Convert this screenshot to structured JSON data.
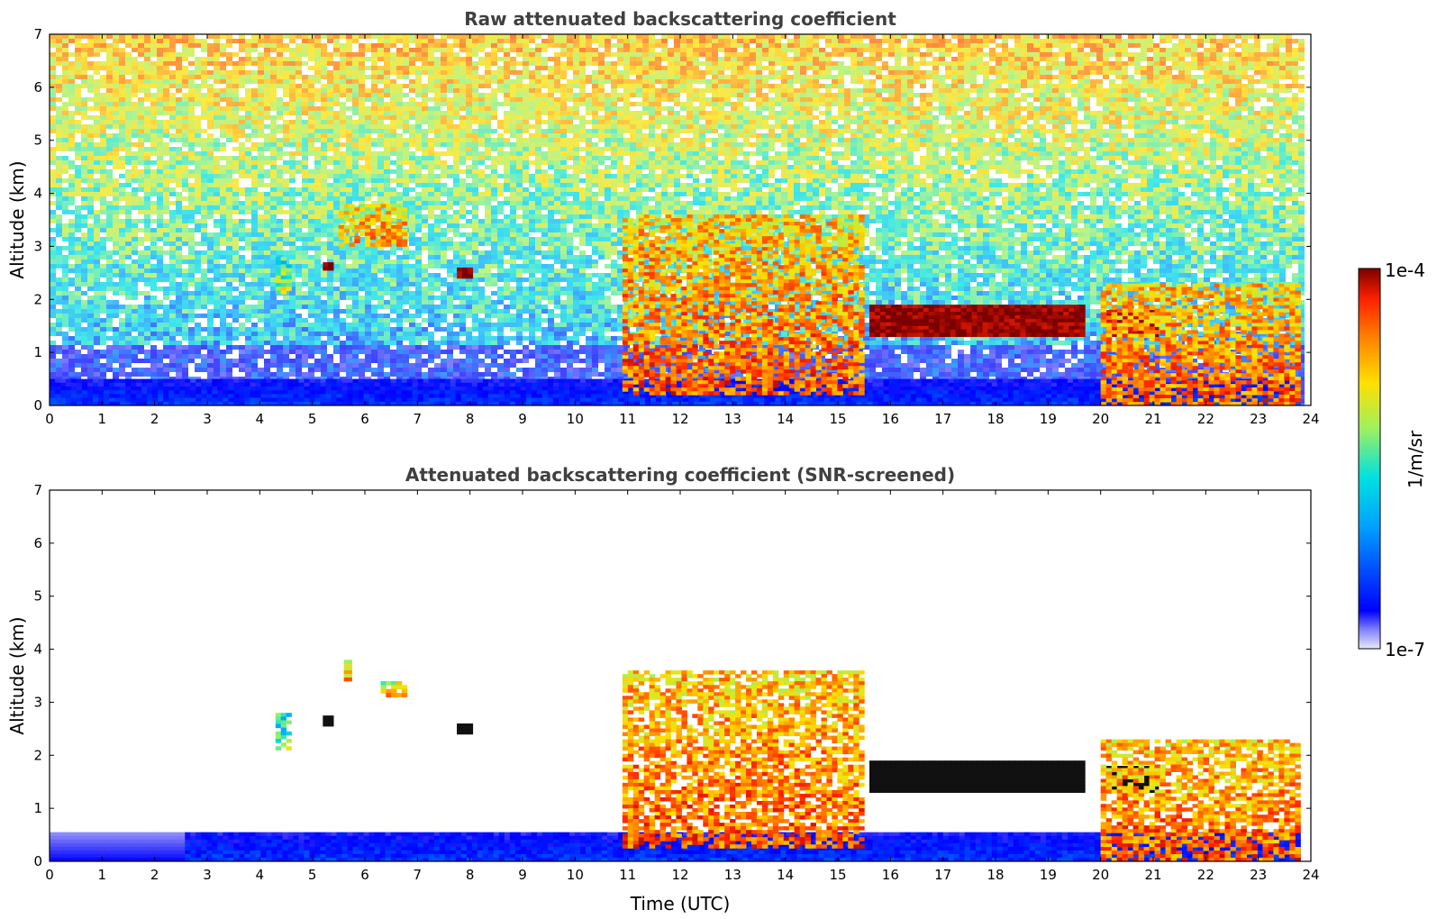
{
  "chart_data": [
    {
      "type": "heatmap",
      "title": "Raw attenuated backscattering coefficient",
      "xlabel": "",
      "ylabel": "Altitude (km)",
      "xlim": [
        0,
        24
      ],
      "ylim": [
        0,
        7
      ],
      "x_ticks": [
        "0",
        "1",
        "2",
        "3",
        "4",
        "5",
        "6",
        "7",
        "8",
        "9",
        "10",
        "11",
        "12",
        "13",
        "14",
        "15",
        "16",
        "17",
        "18",
        "19",
        "20",
        "21",
        "22",
        "23",
        "24"
      ],
      "y_ticks": [
        "0",
        "1",
        "2",
        "3",
        "4",
        "5",
        "6",
        "7"
      ],
      "grid": false,
      "features": [
        {
          "kind": "surface_layer",
          "t": [
            0,
            23.8
          ],
          "alt": [
            0,
            0.5
          ],
          "level": 0.12
        },
        {
          "kind": "cloud",
          "t": [
            5.2,
            5.4
          ],
          "alt": [
            2.55,
            2.7
          ],
          "level": 0.98
        },
        {
          "kind": "cloud",
          "t": [
            7.75,
            8.05
          ],
          "alt": [
            2.4,
            2.6
          ],
          "level": 0.98
        },
        {
          "kind": "aerosol",
          "t": [
            4.3,
            4.6
          ],
          "alt": [
            2.1,
            2.8
          ],
          "level": 0.5
        },
        {
          "kind": "aerosol",
          "t": [
            5.5,
            6.8
          ],
          "alt": [
            3.0,
            3.8
          ],
          "level": 0.7
        },
        {
          "kind": "aerosol",
          "t": [
            10.9,
            15.5
          ],
          "alt": [
            0.2,
            3.6
          ],
          "level": 0.75
        },
        {
          "kind": "cloud",
          "t": [
            15.6,
            19.7
          ],
          "alt": [
            1.3,
            1.9
          ],
          "level": 0.98
        },
        {
          "kind": "cloud",
          "t": [
            20.1,
            21.1
          ],
          "alt": [
            1.3,
            1.8
          ],
          "level": 0.95
        },
        {
          "kind": "boundary_layer",
          "t": [
            20.0,
            23.8
          ],
          "alt": [
            0,
            2.3
          ],
          "level": 0.75
        }
      ]
    },
    {
      "type": "heatmap",
      "title": "Attenuated backscattering coefficient (SNR-screened)",
      "xlabel": "Time (UTC)",
      "ylabel": "Altitude (km)",
      "xlim": [
        0,
        24
      ],
      "ylim": [
        0,
        7
      ],
      "x_ticks": [
        "0",
        "1",
        "2",
        "3",
        "4",
        "5",
        "6",
        "7",
        "8",
        "9",
        "10",
        "11",
        "12",
        "13",
        "14",
        "15",
        "16",
        "17",
        "18",
        "19",
        "20",
        "21",
        "22",
        "23",
        "24"
      ],
      "y_ticks": [
        "0",
        "1",
        "2",
        "3",
        "4",
        "5",
        "6",
        "7"
      ],
      "grid": false,
      "features": [
        {
          "kind": "surface_layer",
          "t": [
            0,
            23.8
          ],
          "alt": [
            0,
            0.55
          ],
          "level": 0.12
        },
        {
          "kind": "cloud",
          "t": [
            5.2,
            5.4
          ],
          "alt": [
            2.55,
            2.75
          ],
          "level": 1.0
        },
        {
          "kind": "cloud",
          "t": [
            7.75,
            8.05
          ],
          "alt": [
            2.4,
            2.6
          ],
          "level": 1.0
        },
        {
          "kind": "aerosol",
          "t": [
            4.3,
            4.6
          ],
          "alt": [
            2.1,
            2.8
          ],
          "level": 0.45
        },
        {
          "kind": "aerosol",
          "t": [
            5.6,
            5.75
          ],
          "alt": [
            3.4,
            3.8
          ],
          "level": 0.7
        },
        {
          "kind": "aerosol",
          "t": [
            6.3,
            6.8
          ],
          "alt": [
            3.1,
            3.4
          ],
          "level": 0.65
        },
        {
          "kind": "aerosol",
          "t": [
            10.9,
            15.5
          ],
          "alt": [
            0.25,
            3.6
          ],
          "level": 0.75
        },
        {
          "kind": "cloud",
          "t": [
            15.6,
            19.7
          ],
          "alt": [
            1.3,
            1.9
          ],
          "level": 1.0
        },
        {
          "kind": "cloud",
          "t": [
            20.1,
            21.1
          ],
          "alt": [
            1.3,
            1.8
          ],
          "level": 1.0
        },
        {
          "kind": "boundary_layer",
          "t": [
            20.0,
            23.8
          ],
          "alt": [
            0,
            2.3
          ],
          "level": 0.75
        }
      ]
    }
  ],
  "colorbar": {
    "label": "1/m/sr",
    "max_label": "1e-4",
    "min_label": "1e-7",
    "scale": "log",
    "range": [
      1e-07,
      0.0001
    ],
    "colormap": [
      "#e8e8f8",
      "#0000ff",
      "#00a0ff",
      "#00e0e0",
      "#a0f060",
      "#ffe000",
      "#ff8000",
      "#ff2000",
      "#7a0000"
    ]
  }
}
